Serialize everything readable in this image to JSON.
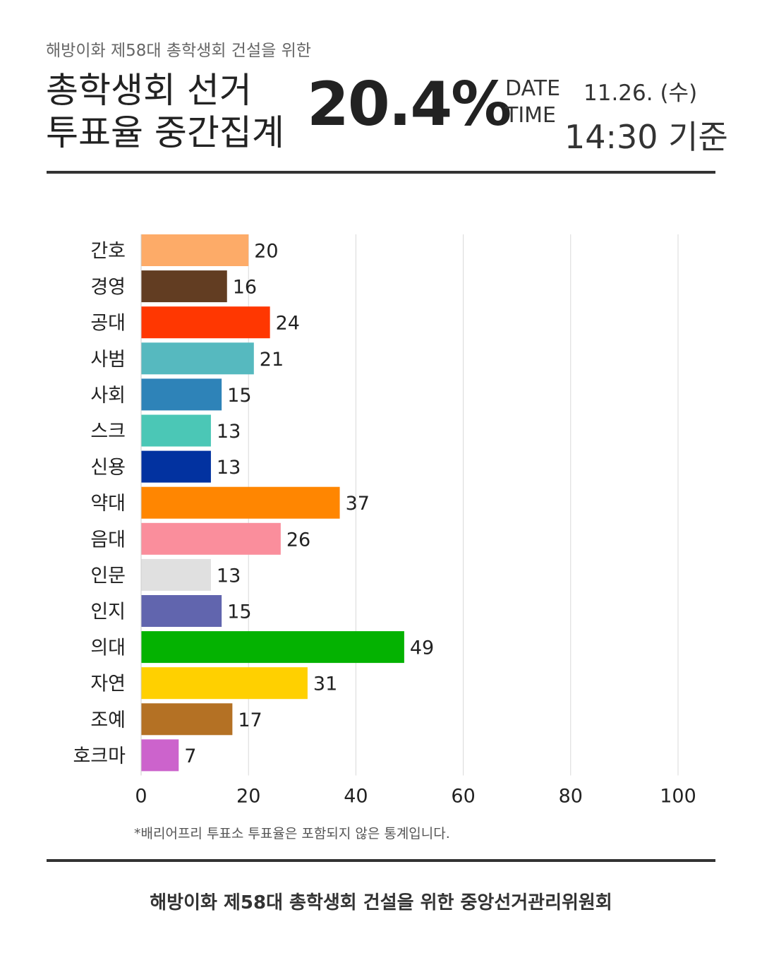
{
  "header": {
    "subtitle": "해방이화 제58대 총학생회 건설을 위한",
    "title_line1": "총학생회 선거",
    "title_line2": "투표율 중간집계",
    "turnout": "20.4%",
    "date_label": "DATE",
    "time_label": "TIME",
    "date_value": "11.26. (수)",
    "time_value": "14:30 기준"
  },
  "chart_data": {
    "type": "bar",
    "orientation": "horizontal",
    "categories": [
      "간호",
      "경영",
      "공대",
      "사범",
      "사회",
      "스크",
      "신용",
      "약대",
      "음대",
      "인문",
      "인지",
      "의대",
      "자연",
      "조예",
      "호크마"
    ],
    "values": [
      20,
      16,
      24,
      21,
      15,
      13,
      13,
      37,
      26,
      13,
      15,
      49,
      31,
      17,
      7
    ],
    "colors": [
      "#fdab68",
      "#623d22",
      "#ff3701",
      "#56b9bf",
      "#2e83b8",
      "#4bc7b6",
      "#0232a0",
      "#ff8601",
      "#fa8e9c",
      "#e0e0e0",
      "#6165ae",
      "#04b201",
      "#ffd000",
      "#b47124",
      "#cc63cc"
    ],
    "xlim": [
      0,
      100
    ],
    "xticks": [
      "0",
      "20",
      "40",
      "60",
      "80",
      "100"
    ],
    "grid": true,
    "data_labels": true
  },
  "footnote": "*배리어프리 투표소 투표율은 포함되지 않은 통계입니다.",
  "footer": "해방이화 제58대 총학생회 건설을 위한 중앙선거관리위원회"
}
